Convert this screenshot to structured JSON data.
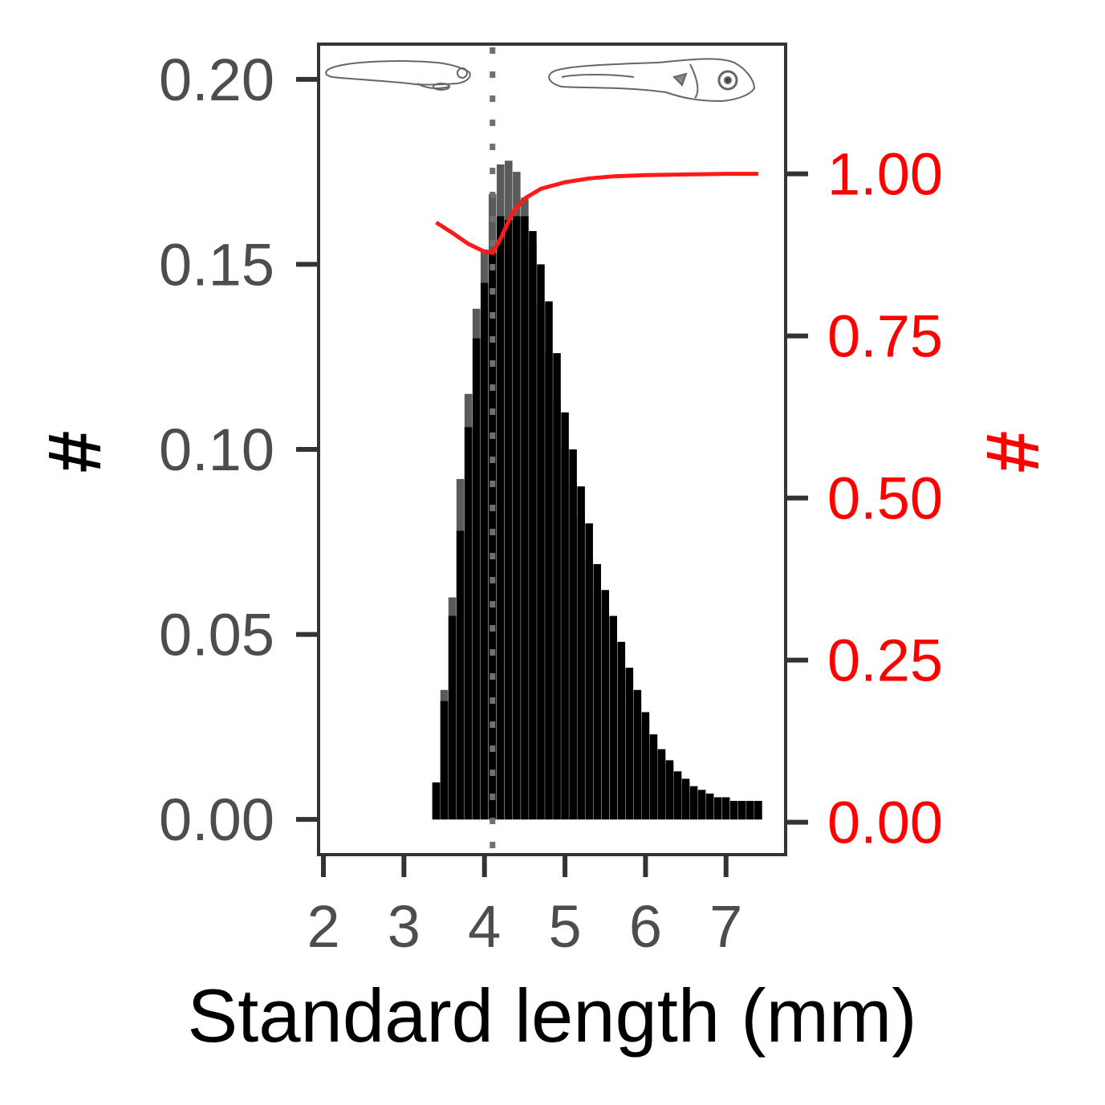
{
  "chart_data": {
    "type": "bar",
    "xlabel": "Standard length (mm)",
    "ylabel": "#",
    "ylabel_right": "#",
    "xlim": [
      1.94,
      7.74
    ],
    "ylim": [
      -0.0095,
      0.2095
    ],
    "ylim_right": [
      -0.05,
      1.2
    ],
    "x_ticks": [
      "2",
      "3",
      "4",
      "5",
      "6",
      "7"
    ],
    "y_ticks": [
      "0.00",
      "0.05",
      "0.10",
      "0.15",
      "0.20"
    ],
    "y_ticks_right": [
      "0.00",
      "0.25",
      "0.50",
      "0.75",
      "1.00"
    ],
    "vline_x": 4.1,
    "vline_style": "dotted",
    "grid": false,
    "colors": {
      "bars_total": "#5a5a5a",
      "bars_main": "#000000",
      "curve": "#ff1a1a",
      "right_axis": "#ff0000",
      "axis_line": "#333333",
      "tick_text": "#4d4d4d"
    },
    "bar_width": 0.095,
    "bar_x_start": 3.4,
    "bar_x_step": 0.1,
    "series": [
      {
        "values": [
          0.01,
          0.035,
          0.06,
          0.092,
          0.115,
          0.138,
          0.154,
          0.169,
          0.177,
          0.178,
          0.175,
          0.168,
          0.156,
          0.139,
          0.126,
          0.113,
          0.1,
          0.091,
          0.082,
          0.07,
          0.063,
          0.057,
          0.05,
          0.044,
          0.038,
          0.032,
          0.026,
          0.021,
          0.018,
          0.015,
          0.012,
          0.01,
          0.008,
          0.007,
          0.006,
          0.006,
          0.005,
          0.005,
          0.005,
          0.005,
          0.005
        ]
      },
      {
        "values": [
          0.01,
          0.032,
          0.055,
          0.078,
          0.106,
          0.13,
          0.145,
          0.153,
          0.163,
          0.162,
          0.163,
          0.163,
          0.159,
          0.15,
          0.14,
          0.126,
          0.11,
          0.1,
          0.09,
          0.08,
          0.069,
          0.062,
          0.055,
          0.048,
          0.041,
          0.035,
          0.029,
          0.023,
          0.019,
          0.016,
          0.013,
          0.011,
          0.009,
          0.008,
          0.007,
          0.006,
          0.006,
          0.005,
          0.005,
          0.005,
          0.005
        ]
      },
      {
        "axis": "right",
        "x": [
          3.4,
          3.6,
          3.8,
          4.0,
          4.1,
          4.2,
          4.35,
          4.5,
          4.7,
          5.0,
          5.3,
          5.6,
          6.0,
          6.5,
          7.0,
          7.4
        ],
        "values": [
          0.925,
          0.909,
          0.892,
          0.88,
          0.878,
          0.9,
          0.94,
          0.962,
          0.977,
          0.987,
          0.993,
          0.996,
          0.998,
          0.999,
          1.0,
          1.0
        ]
      }
    ]
  }
}
